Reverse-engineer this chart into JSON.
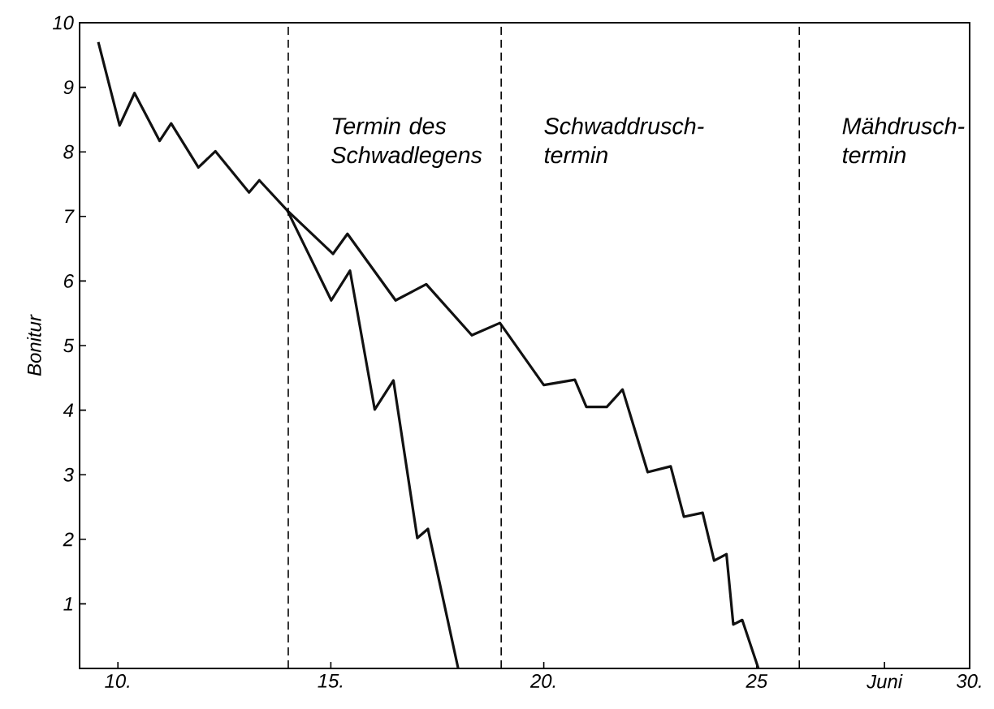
{
  "chart_data": {
    "type": "line",
    "ylabel": "Bonitur",
    "xlim": [
      9.1,
      30
    ],
    "ylim": [
      0,
      10
    ],
    "xticks": [
      {
        "value": 10,
        "label": "10."
      },
      {
        "value": 15,
        "label": "15."
      },
      {
        "value": 20,
        "label": "20."
      },
      25,
      {
        "value": 28,
        "label": "Juni"
      },
      {
        "value": 30,
        "label": "30."
      }
    ],
    "yticks": [
      1,
      2,
      3,
      4,
      5,
      6,
      7,
      8,
      9,
      10
    ],
    "grid": false,
    "marker": "none",
    "line_style": "solid",
    "series": [
      {
        "color": "#111111",
        "x": [
          9.54,
          10.04,
          10.39,
          10.98,
          11.25,
          11.89,
          12.29,
          13.08,
          13.32,
          13.98,
          15.05,
          15.39,
          16.52,
          17.24,
          18.31,
          18.97,
          20.0,
          20.73,
          21.0,
          21.48,
          21.85,
          22.44,
          22.98,
          23.29,
          23.73,
          24.0,
          24.29,
          24.45,
          24.66,
          25.04
        ],
        "values": [
          9.7,
          8.41,
          8.91,
          8.17,
          8.44,
          7.76,
          8.01,
          7.37,
          7.56,
          7.09,
          6.42,
          6.73,
          5.7,
          5.95,
          5.16,
          5.35,
          4.39,
          4.47,
          4.05,
          4.05,
          4.32,
          3.04,
          3.13,
          2.35,
          2.41,
          1.67,
          1.77,
          0.68,
          0.75,
          0
        ]
      },
      {
        "color": "#111111",
        "x": [
          13.98,
          15.01,
          15.45,
          16.03,
          16.47,
          17.03,
          17.28,
          17.99
        ],
        "values": [
          7.09,
          5.7,
          6.16,
          4.01,
          4.46,
          2.02,
          2.16,
          0
        ]
      }
    ],
    "ref_lines": [
      {
        "axis": "x",
        "value": 14,
        "line_style": "dashed"
      },
      {
        "axis": "x",
        "value": 19,
        "line_style": "dashed"
      },
      {
        "axis": "x",
        "value": 26,
        "line_style": "dashed"
      }
    ],
    "annotations": [
      "Termin des Schwadlegens",
      "Schwaddrusch-termin",
      "Mähdrusch-termin"
    ]
  }
}
